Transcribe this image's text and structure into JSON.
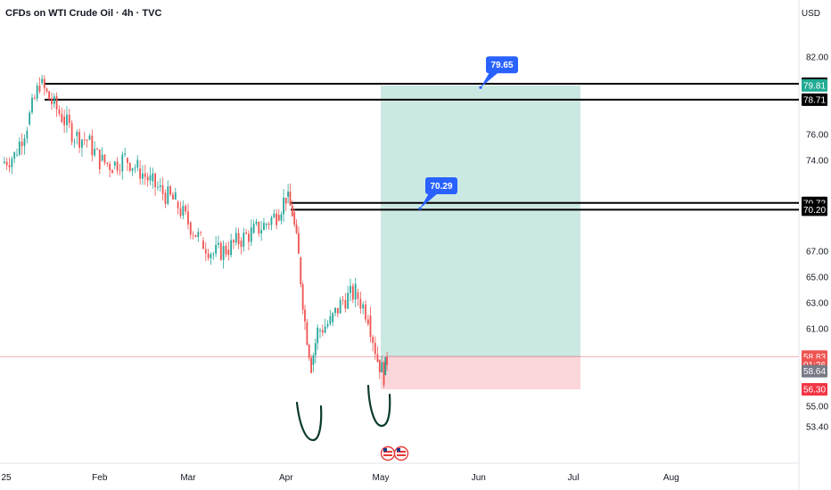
{
  "header": {
    "title": "CFDs on WTI Crude Oil · 4h · TVC",
    "currency": "USD"
  },
  "colors": {
    "up": "#26a69a",
    "down": "#ef5350",
    "target_zone": "#cbe9e3",
    "stop_zone": "#fbd6da",
    "callout": "#2962ff",
    "hline": "#000000",
    "curve": "#0b3b2e"
  },
  "chart_data": {
    "type": "line",
    "title": "CFDs on WTI Crude Oil · 4h · TVC",
    "xlabel": "",
    "ylabel": "",
    "ylim": [
      52.5,
      83.0
    ],
    "price_ticks": [
      "82.00",
      "76.00",
      "74.00",
      "67.00",
      "65.00",
      "63.00",
      "61.00",
      "55.00",
      "53.40"
    ],
    "time_ticks": [
      "25",
      "Feb",
      "Mar",
      "Apr",
      "May",
      "Jun",
      "Jul",
      "Aug"
    ],
    "series": [
      {
        "x": [
          "2025-01-01",
          "2025-01-05",
          "2025-01-09",
          "2025-01-13",
          "2025-01-16",
          "2025-01-20",
          "2025-01-24",
          "2025-01-28",
          "2025-02-01",
          "2025-02-05",
          "2025-02-09",
          "2025-02-13",
          "2025-02-17",
          "2025-02-21",
          "2025-02-25",
          "2025-03-01",
          "2025-03-05",
          "2025-03-09",
          "2025-03-13",
          "2025-03-17",
          "2025-03-21",
          "2025-03-25",
          "2025-03-29",
          "2025-04-01",
          "2025-04-03",
          "2025-04-05",
          "2025-04-07",
          "2025-04-09",
          "2025-04-11",
          "2025-04-15",
          "2025-04-19",
          "2025-04-23",
          "2025-04-27",
          "2025-04-30",
          "2025-05-02",
          "2025-05-03"
        ],
        "values": [
          73.8,
          74.4,
          76.8,
          80.0,
          78.8,
          77.4,
          75.9,
          75.6,
          74.0,
          73.6,
          74.2,
          73.4,
          72.4,
          71.5,
          70.8,
          69.2,
          67.8,
          66.8,
          67.1,
          67.8,
          68.4,
          69.0,
          69.8,
          71.2,
          70.0,
          66.5,
          61.5,
          58.2,
          60.8,
          61.5,
          63.2,
          63.8,
          62.0,
          58.6,
          57.4,
          58.6
        ]
      }
    ],
    "horizontal_lines": [
      79.94,
      78.71,
      70.72,
      70.2
    ],
    "callouts": [
      {
        "label": "79.65",
        "value": 79.65
      },
      {
        "label": "70.29",
        "value": 70.29
      }
    ],
    "position": {
      "entry": 58.83,
      "target": 79.81,
      "stop": 56.3
    },
    "price_tags": [
      {
        "label": "79.94",
        "value": 79.94,
        "bg": "#000000"
      },
      {
        "label": "79.81",
        "value": 79.81,
        "bg": "#22ab94"
      },
      {
        "label": "78.71",
        "value": 78.71,
        "bg": "#000000"
      },
      {
        "label": "70.72",
        "value": 70.72,
        "bg": "#000000"
      },
      {
        "label": "70.20",
        "value": 70.2,
        "bg": "#000000"
      },
      {
        "label": "58.83",
        "value": 58.83,
        "bg": "#ef5350"
      },
      {
        "label": "01:26",
        "value": 58.2,
        "bg": "#ef5350"
      },
      {
        "label": "58.64",
        "value": 57.7,
        "bg": "#787b86"
      },
      {
        "label": "56.30",
        "value": 56.3,
        "bg": "#f23645"
      }
    ]
  }
}
